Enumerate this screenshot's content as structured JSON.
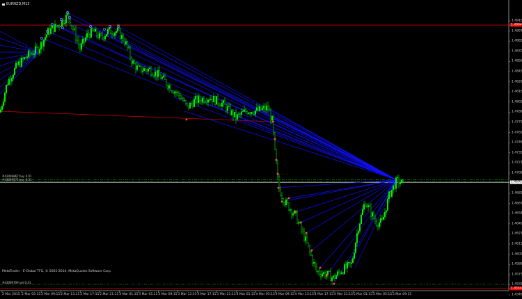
{
  "window": {
    "title": "EURNZD,M15"
  },
  "copyright": "MetaTrader - E-Global TFG, © 2001-2014, MetaQuotes Software Corp.",
  "order_labels": [
    {
      "text": "#43069867 buy 0.01",
      "price": 1.4699
    },
    {
      "text": "#43069572 buy 0.01",
      "price": 1.4697
    },
    {
      "text": "#43069709 sell 0.01",
      "price": 1.456
    }
  ],
  "colors": {
    "background": "#000000",
    "bull": "#00ff00",
    "bear": "#000000",
    "fan": "#1010ff",
    "level": "#cc0000",
    "grid_order": "#008800"
  },
  "chart_data": {
    "type": "candlestick",
    "symbol": "EURNZD",
    "timeframe": "M15",
    "ylim": [
      1.4546,
      1.49105
    ],
    "y_ticks": [
      "1.49105",
      "1.48970",
      "1.48835",
      "1.48700",
      "1.48565",
      "1.48430",
      "1.48295",
      "1.48160",
      "1.48025",
      "1.47890",
      "1.47755",
      "1.47620",
      "1.47485",
      "1.47350",
      "1.47215",
      "1.47080",
      "1.46810",
      "1.46675",
      "1.46540",
      "1.46405",
      "1.46270",
      "1.46135",
      "1.46000",
      "1.45865",
      "1.45730",
      "1.45595",
      "1.45460"
    ],
    "highlight_ticks": [
      {
        "label": "1.49049",
        "style": "red"
      },
      {
        "label": "1.46957",
        "style": "white"
      },
      {
        "label": "1.45544",
        "style": "red"
      }
    ],
    "x_ticks": [
      "2 Mar 2015",
      "2 Mar 05:15",
      "2 Mar 09:15",
      "2 Mar 13:15",
      "2 Mar 17:15",
      "2 Mar 21:15",
      "3 Mar 01:15",
      "3 Mar 05:15",
      "3 Mar 09:15",
      "3 Mar 13:15",
      "3 Mar 17:15",
      "3 Mar 21:15",
      "4 Mar 01:15",
      "4 Mar 05:15",
      "4 Mar 09:15",
      "4 Mar 13:15",
      "4 Mar 17:15",
      "4 Mar 21:15",
      "5 Mar 01:15",
      "5 Mar 05:15",
      "5 Mar 09:15"
    ],
    "close_path": [
      [
        "2 Mar 00:00",
        1.48003
      ],
      [
        "2 Mar 01:00",
        1.48273
      ],
      [
        "2 Mar 03:00",
        1.48504
      ],
      [
        "2 Mar 05:15",
        1.48643
      ],
      [
        "2 Mar 07:30",
        1.48735
      ],
      [
        "2 Mar 09:30",
        1.48966
      ],
      [
        "2 Mar 11:45",
        1.49059
      ],
      [
        "2 Mar 13:30",
        1.49179
      ],
      [
        "2 Mar 14:30",
        1.49013
      ],
      [
        "2 Mar 16:00",
        1.48735
      ],
      [
        "2 Mar 17:30",
        1.4892
      ],
      [
        "2 Mar 18:45",
        1.48966
      ],
      [
        "2 Mar 20:15",
        1.48874
      ],
      [
        "2 Mar 21:45",
        1.48966
      ],
      [
        "2 Mar 23:45",
        1.48966
      ],
      [
        "3 Mar 01:15",
        1.48828
      ],
      [
        "3 Mar 02:45",
        1.4855
      ],
      [
        "3 Mar 04:00",
        1.48458
      ],
      [
        "3 Mar 06:15",
        1.48458
      ],
      [
        "3 Mar 08:30",
        1.48365
      ],
      [
        "3 Mar 10:30",
        1.48226
      ],
      [
        "3 Mar 12:45",
        1.48088
      ],
      [
        "3 Mar 14:00",
        1.47949
      ],
      [
        "3 Mar 15:30",
        1.48041
      ],
      [
        "3 Mar 18:30",
        1.48088
      ],
      [
        "3 Mar 21:15",
        1.48003
      ],
      [
        "4 Mar 00:00",
        1.47818
      ],
      [
        "4 Mar 02:15",
        1.4791
      ],
      [
        "4 Mar 04:30",
        1.4791
      ],
      [
        "4 Mar 06:30",
        1.47949
      ],
      [
        "4 Mar 07:30",
        1.47764
      ],
      [
        "4 Mar 08:00",
        1.47348
      ],
      [
        "4 Mar 08:45",
        1.46885
      ],
      [
        "4 Mar 10:00",
        1.467
      ],
      [
        "4 Mar 12:15",
        1.46515
      ],
      [
        "4 Mar 14:30",
        1.46145
      ],
      [
        "4 Mar 16:30",
        1.45775
      ],
      [
        "4 Mar 18:45",
        1.45729
      ],
      [
        "4 Mar 20:00",
        1.45683
      ],
      [
        "4 Mar 21:30",
        1.45775
      ],
      [
        "4 Mar 23:45",
        1.45868
      ],
      [
        "5 Mar 01:00",
        1.4633
      ],
      [
        "5 Mar 02:30",
        1.467
      ],
      [
        "5 Mar 04:45",
        1.46423
      ],
      [
        "5 Mar 06:00",
        1.46423
      ],
      [
        "5 Mar 07:30",
        1.46793
      ],
      [
        "5 Mar 09:00",
        1.46978
      ],
      [
        "5 Mar 10:30",
        1.46931
      ]
    ],
    "levels": [
      {
        "price": 1.49049,
        "color": "#cc0000",
        "style": "solid"
      },
      {
        "price": 1.45544,
        "color": "#cc0000",
        "style": "solid"
      },
      {
        "price": 1.46957,
        "color": "#cccccc",
        "style": "solid"
      },
      {
        "price": 1.4699,
        "color": "#008800",
        "style": "dashdot"
      },
      {
        "price": 1.46965,
        "color": "#008800",
        "style": "dashdot"
      },
      {
        "price": 1.456,
        "color": "#008800",
        "style": "dashdot"
      }
    ]
  }
}
